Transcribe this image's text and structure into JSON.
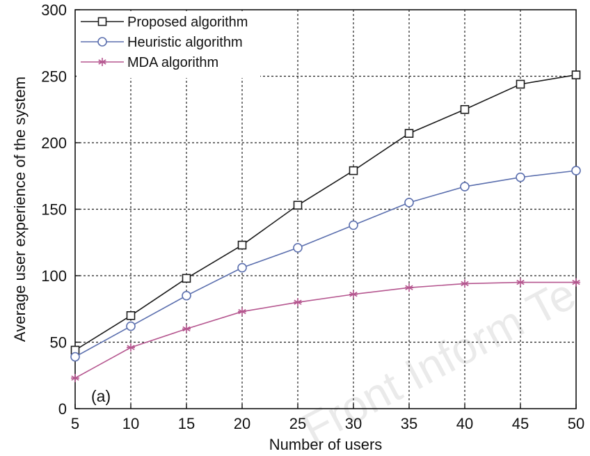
{
  "chart_data": {
    "type": "line",
    "title": "",
    "xlabel": "Number of users",
    "ylabel": "Average user experience of the system",
    "x": [
      5,
      10,
      15,
      20,
      25,
      30,
      35,
      40,
      45,
      50
    ],
    "xlim": [
      5,
      50
    ],
    "ylim": [
      0,
      300
    ],
    "xticks": [
      "5",
      "10",
      "15",
      "20",
      "25",
      "30",
      "35",
      "40",
      "45",
      "50"
    ],
    "yticks": [
      "0",
      "50",
      "100",
      "150",
      "200",
      "250",
      "300"
    ],
    "grid": true,
    "legend_position": "top-left",
    "panel_label": "(a)",
    "watermark": "Front Inform Te",
    "series": [
      {
        "name": "Proposed algorithm",
        "marker": "square-icon",
        "color": "#1a1a1a",
        "values": [
          44,
          70,
          98,
          123,
          153,
          179,
          207,
          225,
          244,
          251
        ]
      },
      {
        "name": "Heuristic algorithm",
        "marker": "circle-icon",
        "color": "#5b6fae",
        "values": [
          39,
          62,
          85,
          106,
          121,
          138,
          155,
          167,
          174,
          179
        ]
      },
      {
        "name": "MDA algorithm",
        "marker": "asterisk-icon",
        "color": "#b5568f",
        "values": [
          23,
          46,
          60,
          73,
          80,
          86,
          91,
          94,
          95,
          95
        ]
      }
    ]
  }
}
